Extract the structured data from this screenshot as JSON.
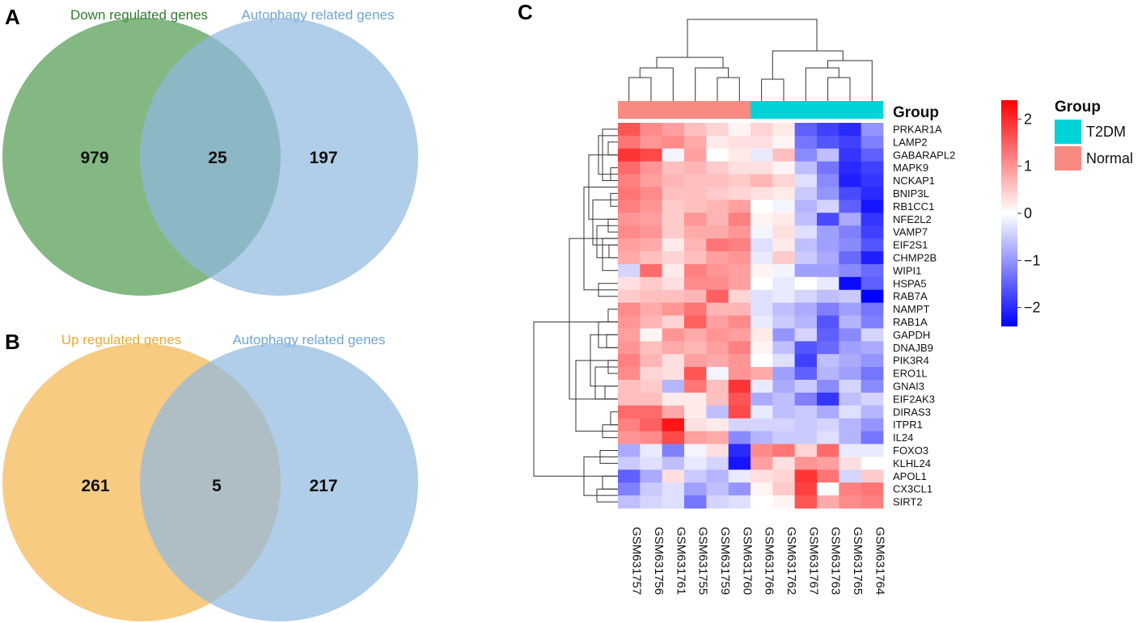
{
  "panels": {
    "a": {
      "letter": "A",
      "left_label": "Down regulated genes",
      "right_label": "Autophagy related genes",
      "left_only": "979",
      "overlap": "25",
      "right_only": "197",
      "left_color": "#4e9a4e",
      "right_color": "#8fb8df",
      "left_label_color": "#2e7d2e",
      "right_label_color": "#6fa5d6"
    },
    "b": {
      "letter": "B",
      "left_label": "Up regulated genes",
      "right_label": "Autophagy related genes",
      "left_only": "261",
      "overlap": "5",
      "right_only": "217",
      "left_color": "#f5ba5a",
      "right_color": "#8fb8df",
      "left_label_color": "#f0a830",
      "right_label_color": "#6fa5d6"
    },
    "c": {
      "letter": "C"
    }
  },
  "chart_data": [
    {
      "type": "venn",
      "panel": "A",
      "sets": [
        "Down regulated genes",
        "Autophagy related genes"
      ],
      "left_only": 979,
      "overlap": 25,
      "right_only": 197
    },
    {
      "type": "venn",
      "panel": "B",
      "sets": [
        "Up regulated genes",
        "Autophagy related genes"
      ],
      "left_only": 261,
      "overlap": 5,
      "right_only": 217
    },
    {
      "type": "heatmap",
      "panel": "C",
      "samples": [
        "GSM631757",
        "GSM631756",
        "GSM631761",
        "GSM631755",
        "GSM631759",
        "GSM631760",
        "GSM631766",
        "GSM631762",
        "GSM631767",
        "GSM631763",
        "GSM631765",
        "GSM631764"
      ],
      "sample_groups": [
        "Normal",
        "Normal",
        "Normal",
        "Normal",
        "Normal",
        "Normal",
        "T2DM",
        "T2DM",
        "T2DM",
        "T2DM",
        "T2DM",
        "T2DM"
      ],
      "genes": [
        "PRKAR1A",
        "LAMP2",
        "GABARAPL2",
        "MAPK9",
        "NCKAP1",
        "BNIP3L",
        "RB1CC1",
        "NFE2L2",
        "VAMP7",
        "EIF2S1",
        "CHMP2B",
        "WIPI1",
        "HSPA5",
        "RAB7A",
        "NAMPT",
        "RAB1A",
        "GAPDH",
        "DNAJB9",
        "PIK3R4",
        "ERO1L",
        "GNAI3",
        "EIF2AK3",
        "DIRAS3",
        "ITPR1",
        "IL24",
        "FOXO3",
        "KLHL24",
        "APOL1",
        "CX3CL1",
        "SIRT2"
      ],
      "values": [
        [
          1.6,
          1.1,
          0.9,
          0.6,
          0.4,
          0.1,
          0.4,
          0.2,
          -1.5,
          -1.8,
          -2.0,
          -1.0
        ],
        [
          1.3,
          1.0,
          1.1,
          0.8,
          0.2,
          0.3,
          0.3,
          0.1,
          -1.3,
          -1.6,
          -1.8,
          -1.2
        ],
        [
          1.9,
          1.7,
          -0.1,
          0.9,
          0.0,
          0.2,
          -0.2,
          0.6,
          -1.1,
          -0.6,
          -1.9,
          -1.5
        ],
        [
          1.4,
          1.0,
          0.6,
          0.7,
          0.5,
          0.3,
          0.3,
          0.1,
          -0.6,
          -1.3,
          -2.0,
          -1.8
        ],
        [
          1.2,
          0.9,
          0.7,
          0.6,
          0.6,
          0.5,
          0.7,
          0.4,
          -0.3,
          -1.1,
          -2.1,
          -1.9
        ],
        [
          1.3,
          1.1,
          0.6,
          0.6,
          0.5,
          0.4,
          0.3,
          0.2,
          -0.5,
          -1.0,
          -1.7,
          -2.0
        ],
        [
          1.2,
          1.0,
          0.5,
          0.6,
          0.7,
          0.9,
          0.0,
          -0.1,
          -0.7,
          -0.4,
          -1.5,
          -2.2
        ],
        [
          1.0,
          0.9,
          0.5,
          1.0,
          0.7,
          1.2,
          0.1,
          0.2,
          -0.6,
          -1.7,
          -0.8,
          -1.9
        ],
        [
          1.1,
          1.0,
          0.5,
          0.8,
          0.8,
          1.0,
          -0.1,
          0.3,
          -0.3,
          -0.9,
          -1.2,
          -1.8
        ],
        [
          0.9,
          0.8,
          0.2,
          0.7,
          1.3,
          1.2,
          -0.3,
          0.2,
          -0.6,
          -0.9,
          -1.1,
          -1.6
        ],
        [
          0.8,
          0.6,
          0.4,
          0.6,
          0.9,
          1.0,
          -0.2,
          0.5,
          -0.5,
          -0.8,
          -1.4,
          -2.1
        ],
        [
          -0.4,
          1.4,
          0.2,
          1.2,
          1.0,
          0.9,
          0.1,
          -0.1,
          -0.9,
          -0.9,
          -1.1,
          -1.4
        ],
        [
          0.3,
          0.5,
          0.3,
          1.1,
          1.1,
          0.9,
          0.0,
          -0.2,
          0.0,
          -0.2,
          -2.3,
          -1.5
        ],
        [
          0.5,
          0.6,
          0.6,
          0.7,
          1.5,
          0.4,
          -0.3,
          -0.2,
          -0.4,
          -0.6,
          -0.5,
          -2.4
        ],
        [
          1.1,
          0.8,
          1.0,
          1.3,
          0.7,
          0.7,
          -0.3,
          -0.6,
          -0.8,
          -1.2,
          -0.9,
          -1.3
        ],
        [
          1.0,
          0.7,
          0.4,
          1.5,
          0.9,
          1.1,
          -0.2,
          -0.5,
          -0.7,
          -1.6,
          -0.7,
          -1.2
        ],
        [
          0.9,
          0.1,
          1.0,
          0.8,
          1.0,
          0.9,
          0.2,
          -1.0,
          -0.4,
          -1.5,
          -1.1,
          -0.4
        ],
        [
          1.0,
          0.6,
          0.8,
          0.7,
          0.9,
          1.2,
          0.1,
          -0.6,
          -1.6,
          -1.4,
          -0.9,
          -0.8
        ],
        [
          1.2,
          0.7,
          0.3,
          0.9,
          0.8,
          1.0,
          0.0,
          -0.3,
          -1.8,
          -0.6,
          -0.8,
          -1.0
        ],
        [
          1.1,
          0.4,
          0.3,
          1.6,
          -0.1,
          1.0,
          0.8,
          -0.9,
          -1.5,
          -0.7,
          -0.9,
          -1.3
        ],
        [
          0.6,
          0.5,
          -0.7,
          1.3,
          0.6,
          1.9,
          -0.2,
          -0.8,
          -0.5,
          -1.1,
          -0.4,
          -1.1
        ],
        [
          0.6,
          0.6,
          0.2,
          0.2,
          0.6,
          1.6,
          -0.8,
          -0.6,
          -1.2,
          -1.9,
          -0.6,
          -0.4
        ],
        [
          1.4,
          1.4,
          0.8,
          0.2,
          -0.6,
          1.7,
          -0.2,
          -0.6,
          -0.5,
          -0.8,
          -0.3,
          -0.7
        ],
        [
          1.2,
          1.5,
          2.2,
          0.3,
          0.2,
          -0.4,
          -0.4,
          -0.4,
          -0.5,
          -0.4,
          -0.7,
          -1.0
        ],
        [
          1.0,
          1.1,
          1.7,
          0.9,
          0.8,
          -1.1,
          -0.7,
          -0.5,
          -0.5,
          -0.3,
          -0.7,
          -1.3
        ],
        [
          -0.8,
          -0.2,
          -1.2,
          -0.1,
          0.3,
          -2.0,
          1.1,
          1.3,
          0.4,
          1.4,
          -0.2,
          -0.2
        ],
        [
          -0.5,
          -0.3,
          -0.6,
          -0.2,
          -0.4,
          -2.2,
          0.9,
          0.3,
          1.0,
          0.9,
          0.3,
          0.0
        ],
        [
          -1.5,
          -0.8,
          0.3,
          -0.5,
          -0.7,
          -0.2,
          0.3,
          0.4,
          1.9,
          1.3,
          -0.4,
          0.5
        ],
        [
          -1.2,
          -0.5,
          -0.3,
          -0.9,
          -0.6,
          -1.0,
          0.1,
          0.5,
          1.8,
          0.0,
          1.2,
          1.3
        ],
        [
          -0.6,
          -0.4,
          -0.3,
          -1.3,
          -0.4,
          -0.3,
          0.0,
          0.1,
          1.6,
          0.8,
          1.1,
          1.2
        ]
      ],
      "color_scale": {
        "min": -2.4,
        "max": 2.4,
        "low": "#0000ff",
        "mid": "#ffffff",
        "high": "#ff0000"
      },
      "ticks": [
        2,
        1,
        0,
        -1,
        -2
      ],
      "tick_labels": [
        "2",
        "1",
        "0",
        "−1",
        "−2"
      ],
      "group_bar_label": "Group",
      "legend": {
        "title": "Group",
        "items": [
          {
            "label": "T2DM",
            "color": "#00d3d7"
          },
          {
            "label": "Normal",
            "color": "#f88a82"
          }
        ]
      }
    }
  ]
}
